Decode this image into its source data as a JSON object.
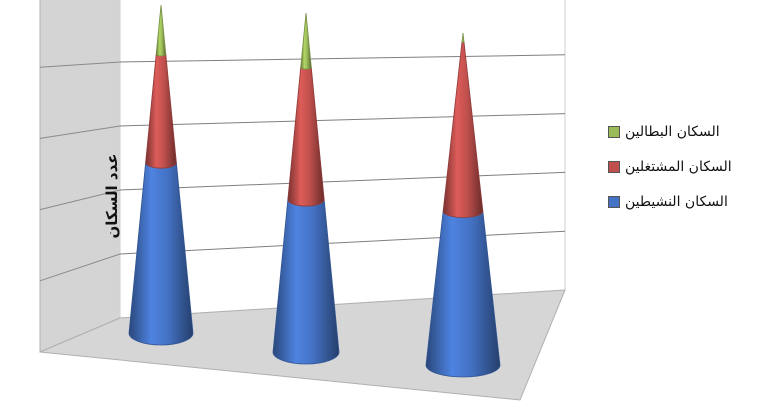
{
  "chart_data": {
    "type": "bar",
    "style": "3d-cone-stacked",
    "categories": [
      "",
      "",
      ""
    ],
    "series": [
      {
        "name": "السكان النشيطين",
        "color": "#4472C4",
        "values": [
          52,
          45,
          51
        ]
      },
      {
        "name": "السكان المشتغلين",
        "color": "#C0504D",
        "values": [
          33,
          39,
          56
        ]
      },
      {
        "name": "السكان البطالين",
        "color": "#9BBB59",
        "values": [
          15,
          16,
          3
        ]
      }
    ],
    "title": "",
    "xlabel": "",
    "ylabel": "عدد السكان",
    "ylim": [
      0,
      100
    ],
    "grid": true,
    "legend_position": "right"
  }
}
